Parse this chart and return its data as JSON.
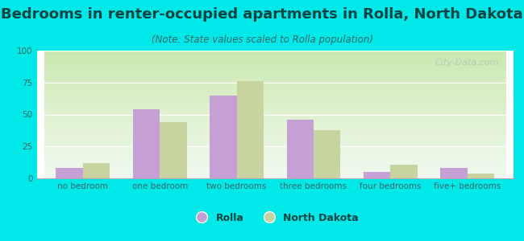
{
  "title": "Bedrooms in renter-occupied apartments in Rolla, North Dakota",
  "subtitle": "(Note: State values scaled to Rolla population)",
  "categories": [
    "no bedroom",
    "one bedroom",
    "two bedrooms",
    "three bedrooms",
    "four bedrooms",
    "five+ bedrooms"
  ],
  "rolla_values": [
    8,
    54,
    65,
    46,
    5,
    8
  ],
  "nd_values": [
    12,
    44,
    76,
    38,
    11,
    4
  ],
  "rolla_color": "#c4a0d4",
  "nd_color": "#c8d4a0",
  "background_color": "#00e8e8",
  "ylim": [
    0,
    100
  ],
  "yticks": [
    0,
    25,
    50,
    75,
    100
  ],
  "bar_width": 0.35,
  "title_fontsize": 13,
  "subtitle_fontsize": 8.5,
  "tick_fontsize": 7.5,
  "legend_fontsize": 9,
  "title_color": "#004444",
  "subtitle_color": "#336666",
  "tick_color": "#336666",
  "watermark_text": "City-Data.com",
  "legend_labels": [
    "Rolla",
    "North Dakota"
  ]
}
